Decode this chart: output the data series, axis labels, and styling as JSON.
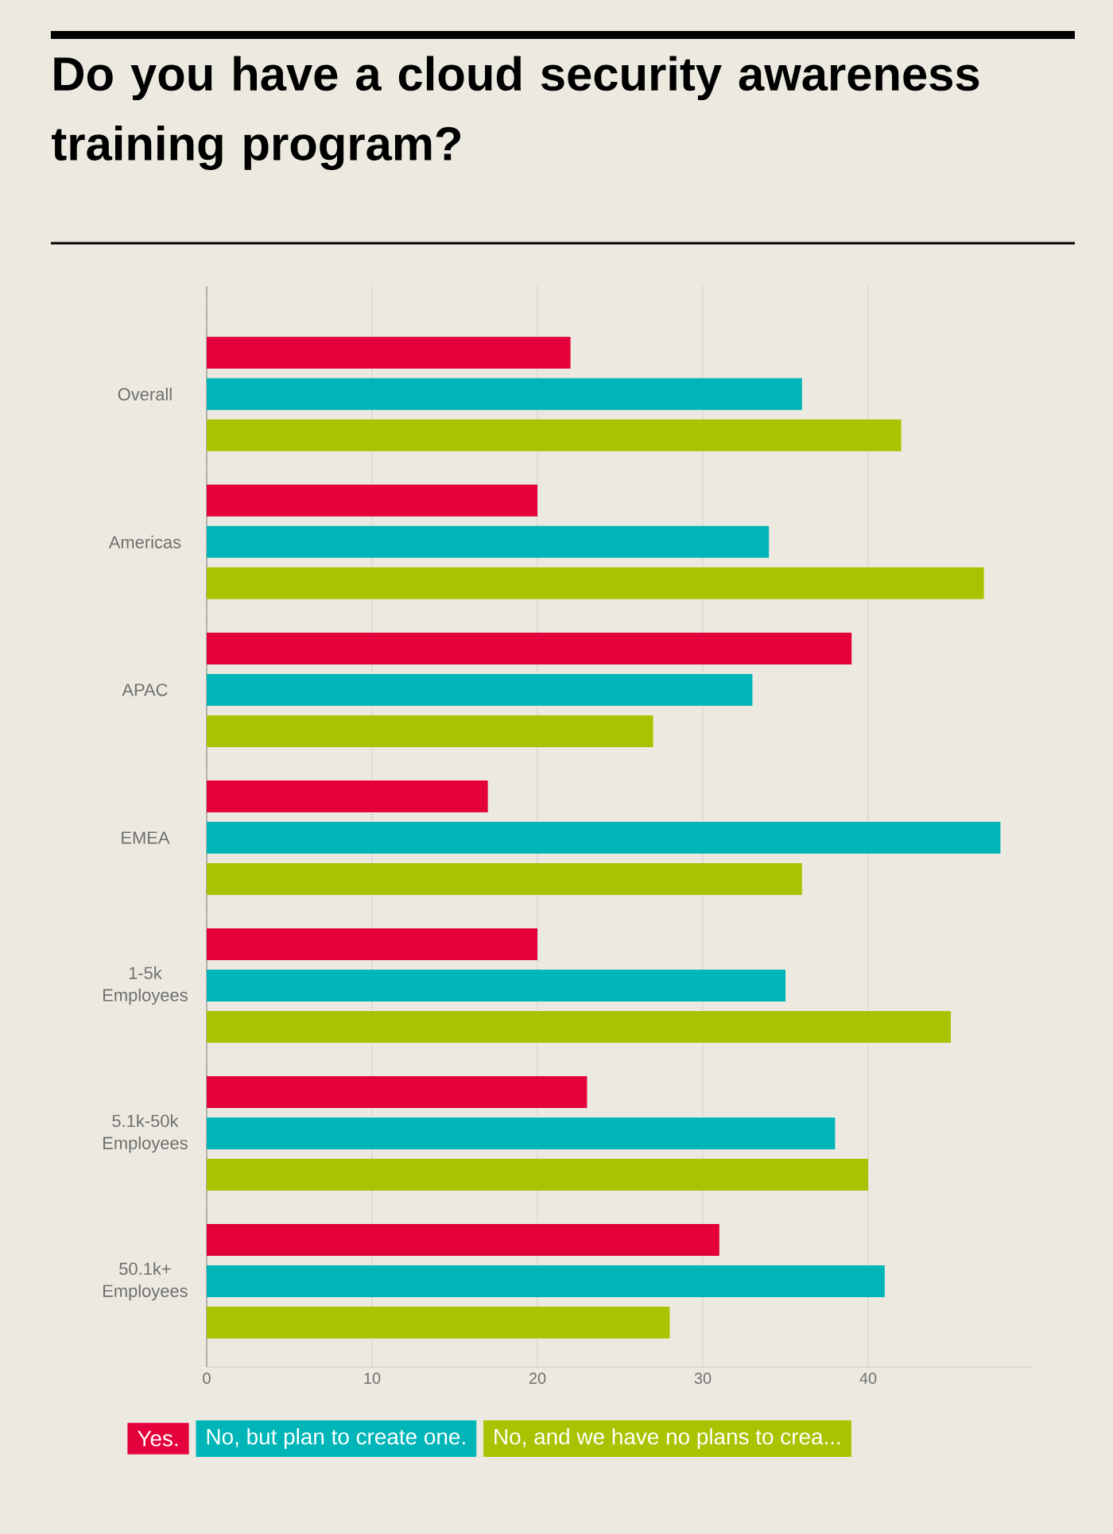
{
  "chart_data": {
    "type": "bar",
    "orientation": "horizontal",
    "title": "Do you have a cloud security awareness training program?",
    "categories": [
      "Overall",
      "Americas",
      "APAC",
      "EMEA",
      "1-5k Employees",
      "5.1k-50k Employees",
      "50.1k+ Employees"
    ],
    "series": [
      {
        "name": "Yes.",
        "color": "#e4003a",
        "values": [
          22,
          20,
          39,
          17,
          20,
          23,
          31
        ]
      },
      {
        "name": "No, but plan to create one.",
        "color": "#00b5b8",
        "values": [
          36,
          34,
          33,
          48,
          35,
          38,
          41
        ]
      },
      {
        "name": "No, and we have no plans to crea...",
        "color": "#a8c400",
        "values": [
          42,
          47,
          27,
          36,
          45,
          40,
          28
        ]
      }
    ],
    "xlim": [
      0,
      50
    ],
    "xticks": [
      0,
      10,
      20,
      30,
      40
    ],
    "grid": "x",
    "legend": "bottom"
  }
}
